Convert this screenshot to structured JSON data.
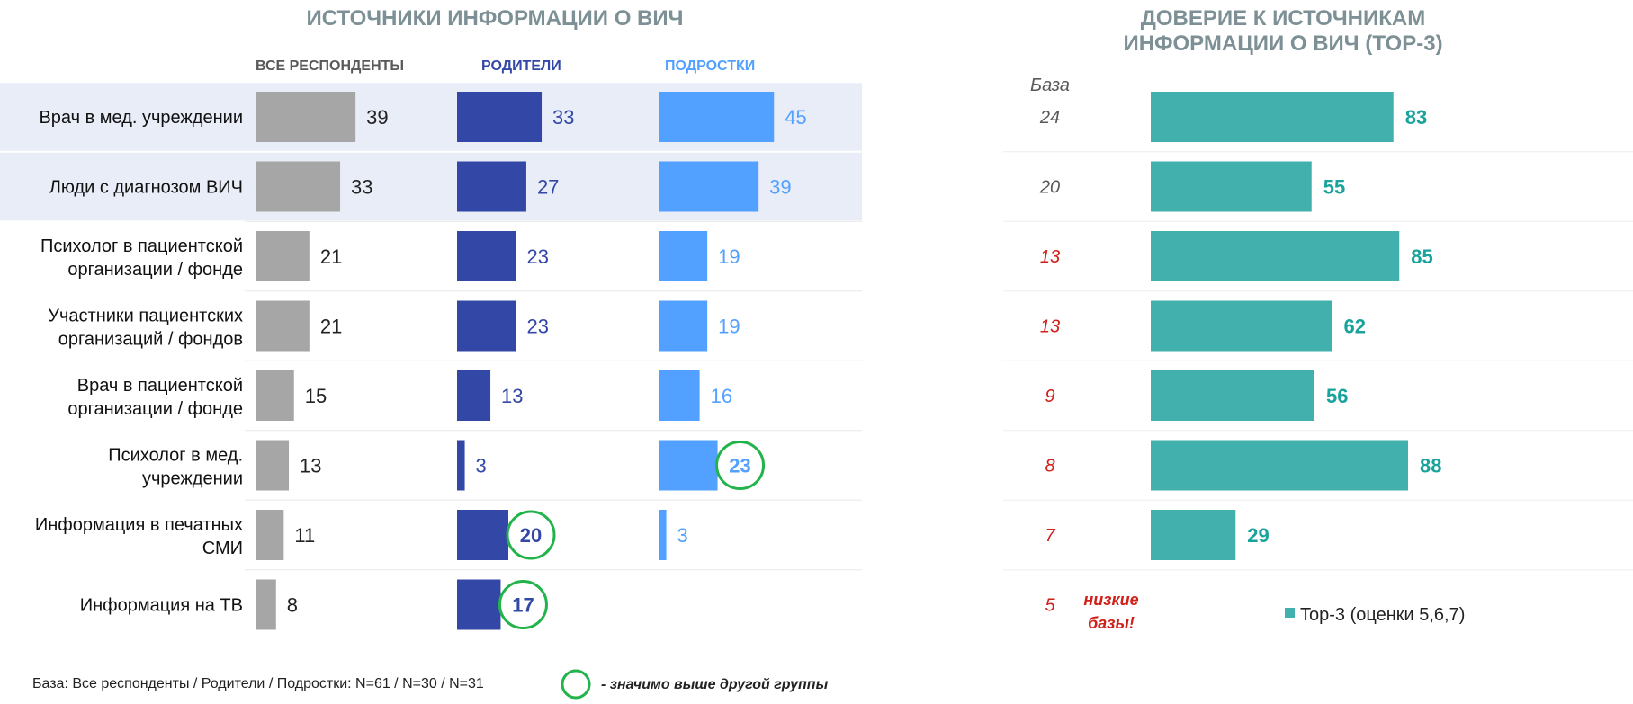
{
  "colors": {
    "all": "#a6a6a6",
    "parents": "#3348a6",
    "teens": "#52a0ff",
    "trust": "#42b0ad",
    "trust_label": "#1aa39c",
    "highlight_band": "#e9edf8",
    "significance_ring": "#22b34b",
    "low_base": "#d0201a",
    "base_normal": "#595959"
  },
  "titles": {
    "left": "ИСТОЧНИКИ ИНФОРМАЦИИ О ВИЧ",
    "right_line1": "ДОВЕРИЕ К ИСТОЧНИКАМ",
    "right_line2": "ИНФОРМАЦИИ О ВИЧ (TOP-3)"
  },
  "base_header": "База",
  "footer": {
    "base_text": "База: Все респонденты / Родители / Подростки: N=61 / N=30 / N=31",
    "significance_text": "- значимо выше другой группы",
    "low_base_line1": "низкие",
    "low_base_line2": "базы!"
  },
  "chart_data": [
    {
      "type": "bar",
      "orientation": "horizontal",
      "title": "ИСТОЧНИКИ ИНФОРМАЦИИ О ВИЧ",
      "categories": [
        [
          "Врач в мед. учреждении"
        ],
        [
          "Люди с диагнозом ВИЧ"
        ],
        [
          "Психолог в пациентской",
          "организации / фонде"
        ],
        [
          "Участники пациентских",
          "организаций / фондов"
        ],
        [
          "Врач в пациентской",
          "организации / фонде"
        ],
        [
          "Психолог в мед.",
          "учреждении"
        ],
        [
          "Информация в печатных",
          "СМИ"
        ],
        [
          "Информация на ТВ"
        ]
      ],
      "highlighted_rows": [
        0,
        1
      ],
      "series": [
        {
          "name": "ВСЕ РЕСПОНДЕНТЫ",
          "values": [
            39,
            33,
            21,
            21,
            15,
            13,
            11,
            8
          ],
          "significant": [
            false,
            false,
            false,
            false,
            false,
            false,
            false,
            false
          ]
        },
        {
          "name": "РОДИТЕЛИ",
          "values": [
            33,
            27,
            23,
            23,
            13,
            3,
            20,
            17
          ],
          "significant": [
            false,
            false,
            false,
            false,
            false,
            false,
            true,
            true
          ]
        },
        {
          "name": "ПОДРОСТКИ",
          "values": [
            45,
            39,
            19,
            19,
            16,
            23,
            3,
            null
          ],
          "significant": [
            false,
            false,
            false,
            false,
            false,
            true,
            false,
            false
          ]
        }
      ]
    },
    {
      "type": "bar",
      "orientation": "horizontal",
      "title": "ДОВЕРИЕ К ИСТОЧНИКАМ ИНФОРМАЦИИ О ВИЧ (TOP-3)",
      "base": [
        24,
        20,
        13,
        13,
        9,
        8,
        7,
        5
      ],
      "low_base": [
        false,
        false,
        true,
        true,
        true,
        true,
        true,
        true
      ],
      "series": [
        {
          "name": "Top-3 (оценки 5,6,7)",
          "values": [
            83,
            55,
            85,
            62,
            56,
            88,
            29,
            null
          ]
        }
      ]
    }
  ]
}
